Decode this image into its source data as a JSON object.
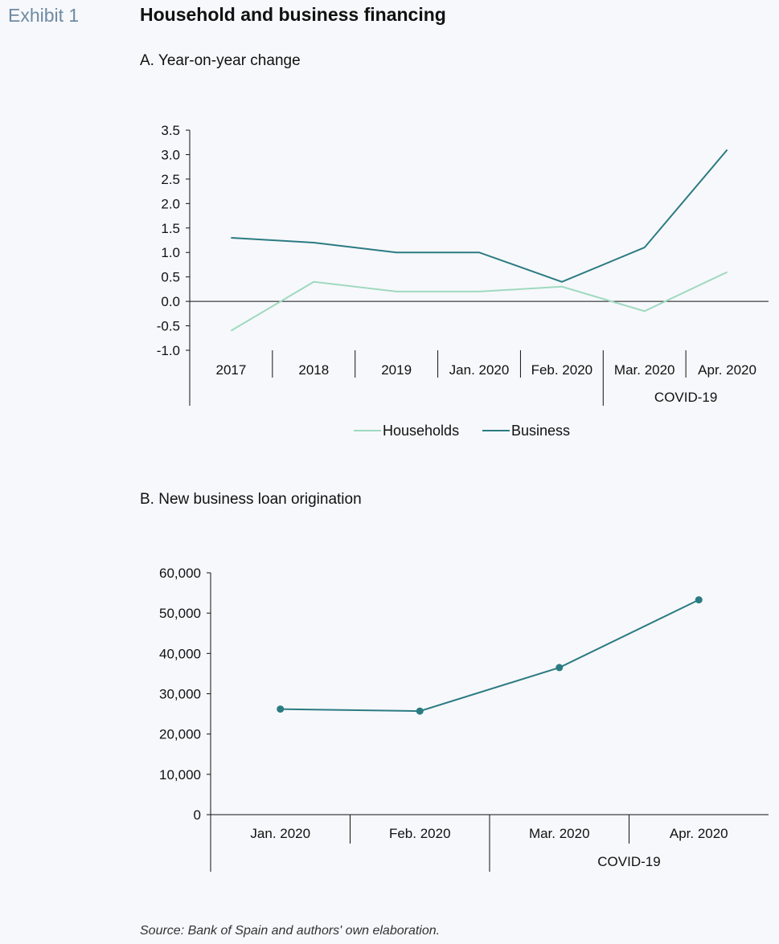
{
  "exhibit": {
    "label": "Exhibit 1",
    "title": "Household and business financing"
  },
  "source": "Source: Bank of Spain and authors' own elaboration.",
  "colors": {
    "households": "#9fd9c0",
    "business": "#2b7b82",
    "axis": "#111111"
  },
  "chart_data": [
    {
      "type": "line",
      "title": "A. Year-on-year change",
      "categories": [
        "2017",
        "2018",
        "2019",
        "Jan. 2020",
        "Feb. 2020",
        "Mar. 2020",
        "Apr. 2020"
      ],
      "group_label": "COVID-19",
      "group_categories": [
        "Mar. 2020",
        "Apr. 2020"
      ],
      "ylim": [
        -1.0,
        3.5
      ],
      "yticks": [
        "-1.0",
        "-0.5",
        "0.0",
        "0.5",
        "1.0",
        "1.5",
        "2.0",
        "2.5",
        "3.0",
        "3.5"
      ],
      "legend": "bottom",
      "series": [
        {
          "name": "Households",
          "values": [
            -0.6,
            0.4,
            0.2,
            0.2,
            0.3,
            -0.2,
            0.6
          ]
        },
        {
          "name": "Business",
          "values": [
            1.3,
            1.2,
            1.0,
            1.0,
            0.4,
            1.1,
            3.1
          ]
        }
      ]
    },
    {
      "type": "line",
      "title": "B. New business loan origination",
      "categories": [
        "Jan. 2020",
        "Feb. 2020",
        "Mar. 2020",
        "Apr. 2020"
      ],
      "group_label": "COVID-19",
      "group_categories": [
        "Mar. 2020",
        "Apr. 2020"
      ],
      "ylim": [
        0,
        60000
      ],
      "yticks": [
        "0",
        "10,000",
        "20,000",
        "30,000",
        "40,000",
        "50,000",
        "60,000"
      ],
      "markers": true,
      "series": [
        {
          "values": [
            26200,
            25700,
            36500,
            53300
          ]
        }
      ]
    }
  ]
}
